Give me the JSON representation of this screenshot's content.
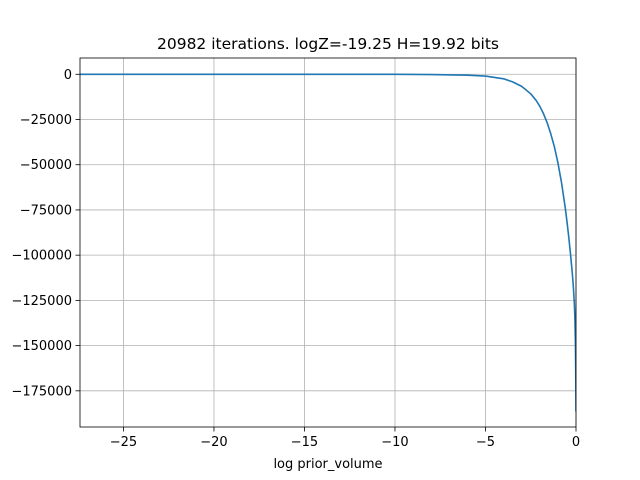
{
  "chart_data": {
    "type": "line",
    "title": "20982 iterations. logZ=-19.25 H=19.92 bits",
    "xlabel": "log prior_volume",
    "ylabel": "",
    "xlim": [
      -27.4,
      0
    ],
    "ylim": [
      -195000,
      9000
    ],
    "grid": true,
    "x_ticks": [
      -25,
      -20,
      -15,
      -10,
      -5,
      0
    ],
    "x_tick_labels": [
      "−25",
      "−20",
      "−15",
      "−10",
      "−5",
      "0"
    ],
    "y_ticks": [
      0,
      -25000,
      -50000,
      -75000,
      -100000,
      -125000,
      -150000,
      -175000
    ],
    "y_tick_labels": [
      "0",
      "−25000",
      "−50000",
      "−75000",
      "−100000",
      "−125000",
      "−150000",
      "−175000"
    ],
    "series": [
      {
        "color": "#1f77b4",
        "x": [
          -27.4,
          -25,
          -20,
          -15,
          -10,
          -8,
          -6,
          -5,
          -4,
          -3.5,
          -3,
          -2.5,
          -2.2,
          -2,
          -1.8,
          -1.6,
          -1.4,
          -1.2,
          -1.0,
          -0.8,
          -0.6,
          -0.5,
          -0.4,
          -0.3,
          -0.2,
          -0.15,
          -0.1,
          -0.06,
          -0.03,
          -0.01,
          0
        ],
        "y": [
          0,
          0,
          0,
          0,
          -20,
          -150,
          -500,
          -1000,
          -2500,
          -4200,
          -6700,
          -10800,
          -14500,
          -17700,
          -21700,
          -26600,
          -32700,
          -39900,
          -48900,
          -59900,
          -73400,
          -81300,
          -90000,
          -99700,
          -110500,
          -117000,
          -125000,
          -135000,
          -150000,
          -170000,
          -186000
        ]
      }
    ]
  }
}
